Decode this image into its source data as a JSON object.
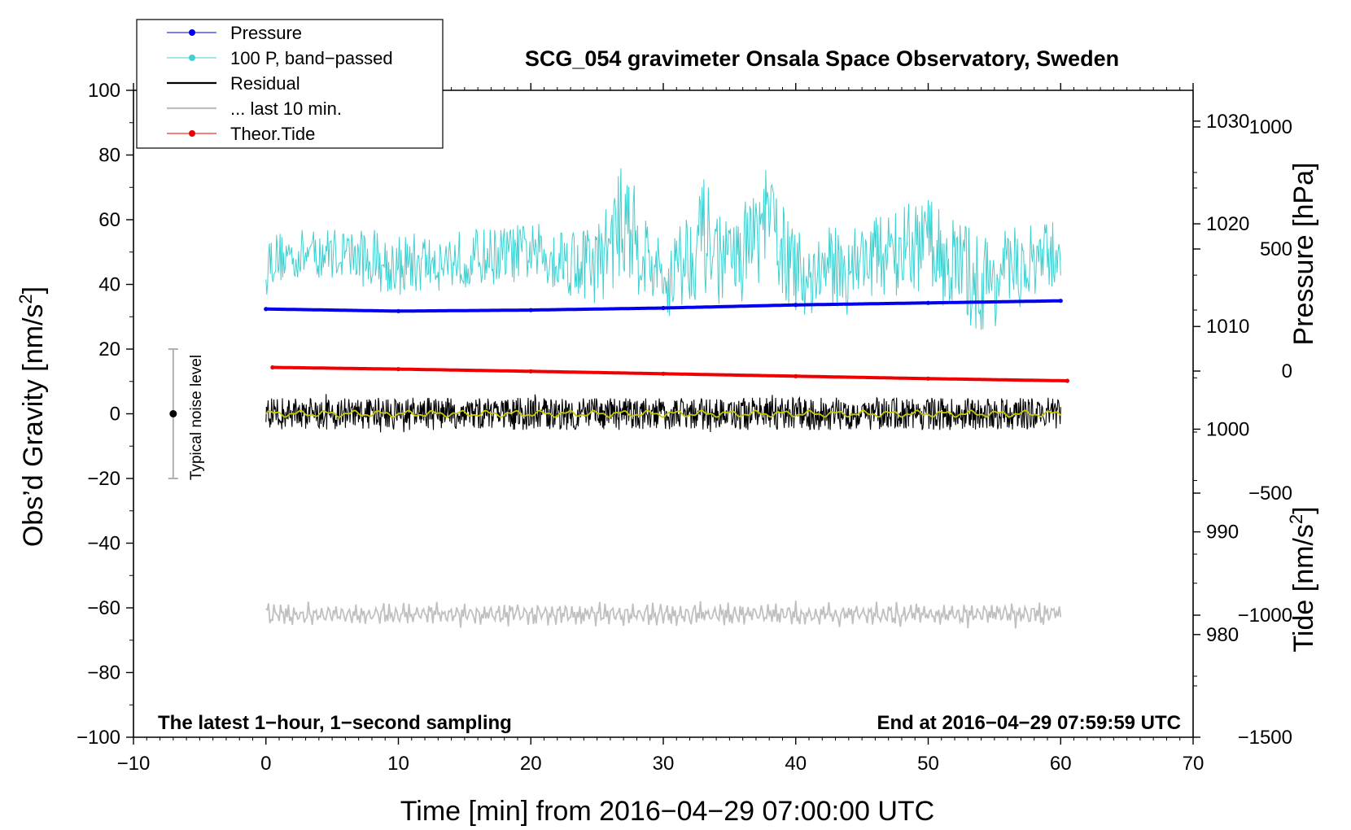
{
  "chart_data": {
    "type": "line",
    "title": "SCG_054 gravimeter Onsala Space Observatory, Sweden",
    "xlabel": "Time [min] from 2016−04−29 07:00:00 UTC",
    "ylabel_left": "Obs’d Gravity [nm/s",
    "ylabel_left_sup": "2",
    "ylabel_left_close": "]",
    "ylabel_pressure": "Pressure [hPa]",
    "ylabel_tide": "Tide [nm/s",
    "ylabel_tide_sup": "2",
    "ylabel_tide_close": "]",
    "xlim": [
      -10,
      70
    ],
    "ylim": [
      -100,
      100
    ],
    "pressure_lim": [
      970,
      1033
    ],
    "tide_lim": [
      -1500,
      1150
    ],
    "xticks": [
      -10,
      0,
      10,
      20,
      30,
      40,
      50,
      60,
      70
    ],
    "xtick_labels": [
      "−10",
      "0",
      "10",
      "20",
      "30",
      "40",
      "50",
      "60",
      "70"
    ],
    "yticks": [
      -100,
      -80,
      -60,
      -40,
      -20,
      0,
      20,
      40,
      60,
      80,
      100
    ],
    "ytick_labels": [
      "−100",
      "−80",
      "−60",
      "−40",
      "−20",
      "0",
      "20",
      "40",
      "60",
      "80",
      "100"
    ],
    "pressure_ticks": [
      980,
      990,
      1000,
      1010,
      1020,
      1030
    ],
    "pressure_tick_labels": [
      "980",
      "990",
      "1000",
      "1010",
      "1020",
      "1030"
    ],
    "tide_ticks": [
      -1500,
      -1000,
      -500,
      0,
      500,
      1000
    ],
    "tide_tick_labels": [
      "−1500",
      "−1000",
      "−500",
      "0",
      "500",
      "1000"
    ],
    "annotation_left": "The latest 1−hour, 1−second sampling",
    "annotation_right": "End at 2016−04−29 07:59:59 UTC",
    "noise_label": "Typical noise level",
    "noise_bar": {
      "x": -7,
      "center": 0,
      "low": -20,
      "high": 20
    },
    "legend_position": "top-left",
    "series": [
      {
        "name": "Pressure",
        "axis": "pressure",
        "color": "#0000ee",
        "style": "line-dots",
        "x": [
          0,
          10,
          20,
          30,
          40,
          50,
          60
        ],
        "y": [
          1011.7,
          1011.5,
          1011.6,
          1011.8,
          1012.1,
          1012.3,
          1012.5
        ]
      },
      {
        "name": "100 P, band−passed",
        "axis": "gravity",
        "color": "#3fd0d0",
        "style": "thin-line",
        "x": [
          0,
          5,
          10,
          15,
          20,
          25,
          27,
          30,
          33,
          35,
          38,
          40,
          45,
          50,
          54,
          60
        ],
        "y": [
          48,
          50,
          46,
          48,
          50,
          46,
          60,
          40,
          55,
          45,
          60,
          42,
          48,
          52,
          40,
          50
        ],
        "amplitude": [
          8,
          8,
          10,
          9,
          9,
          13,
          18,
          12,
          18,
          14,
          17,
          14,
          12,
          15,
          16,
          10
        ]
      },
      {
        "name": "Residual",
        "axis": "gravity",
        "color": "#000000",
        "style": "thin-line",
        "x": [
          0,
          10,
          20,
          30,
          40,
          50,
          60
        ],
        "y": [
          0,
          0,
          0,
          0,
          0,
          0,
          0
        ],
        "amplitude": [
          5,
          5,
          5,
          5,
          5,
          5,
          5
        ]
      },
      {
        "name": "... last 10 min.",
        "axis": "gravity",
        "color": "#c0c0c0",
        "style": "line",
        "x": [
          0,
          10,
          20,
          30,
          40,
          50,
          60
        ],
        "y": [
          -62,
          -62,
          -62,
          -62,
          -62,
          -62,
          -62
        ],
        "amplitude": [
          3,
          3,
          3,
          3,
          3,
          3,
          3
        ]
      },
      {
        "name": "Theor.Tide",
        "axis": "tide",
        "color": "#ee0000",
        "style": "line-dots",
        "x": [
          0.5,
          10,
          20,
          30,
          40,
          50,
          60.5
        ],
        "y": [
          15,
          8,
          -1,
          -11,
          -21,
          -31,
          -40
        ]
      },
      {
        "name": "",
        "axis": "gravity",
        "color": "#c8c800",
        "style": "smooth",
        "x": [
          0,
          10,
          20,
          30,
          40,
          50,
          60
        ],
        "y": [
          0,
          0,
          0,
          0,
          0,
          0,
          0
        ],
        "amplitude": [
          1,
          1,
          1,
          1,
          1,
          1,
          1
        ]
      }
    ]
  }
}
